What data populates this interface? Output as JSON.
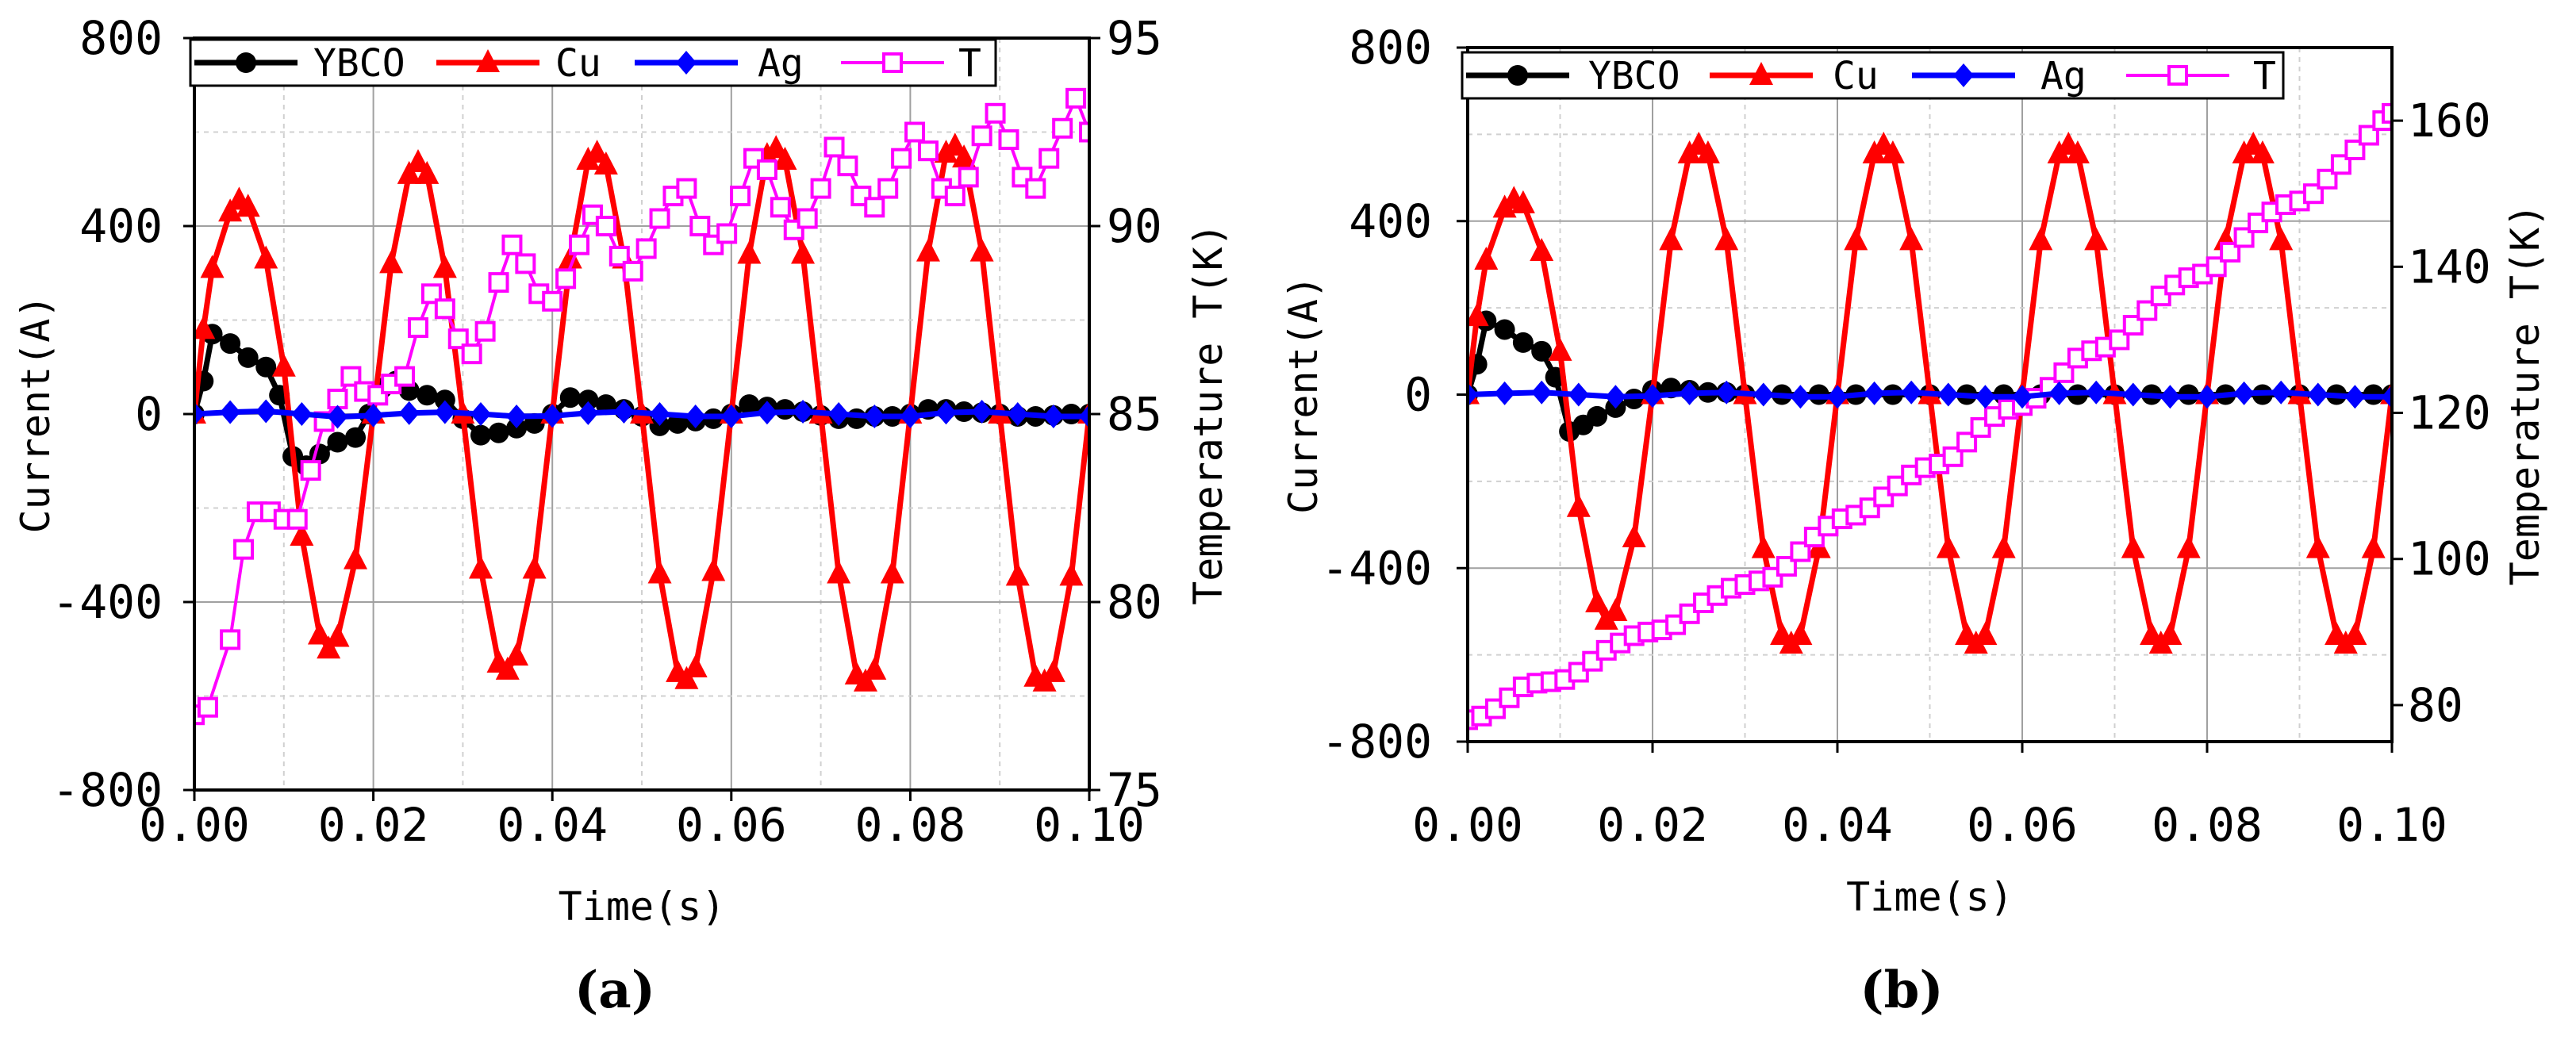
{
  "chart_data": [
    {
      "type": "line",
      "panel_label": "(a)",
      "xlabel": "Time(s)",
      "ylabel": "Current(A)",
      "y2label": "Temperature T(K)",
      "xlim": [
        0,
        0.1
      ],
      "ylim": [
        -800,
        800
      ],
      "y2lim": [
        75,
        95
      ],
      "x_ticks": [
        "0.00",
        "0.02",
        "0.04",
        "0.06",
        "0.08",
        "0.10"
      ],
      "y_ticks": [
        "800",
        "400",
        "0",
        "-400",
        "-800"
      ],
      "y2_ticks": [
        "95",
        "90",
        "85",
        "80",
        "75"
      ],
      "grid": true,
      "legend_position": "top",
      "legend": [
        "YBCO",
        "Cu",
        "Ag",
        "T"
      ],
      "series": [
        {
          "name": "YBCO",
          "color": "#000000",
          "marker": "circle",
          "axis": "left",
          "x": [
            0,
            0.001,
            0.002,
            0.004,
            0.006,
            0.008,
            0.0095,
            0.011,
            0.0125,
            0.014,
            0.016,
            0.018,
            0.0195,
            0.021,
            0.0225,
            0.024,
            0.026,
            0.028,
            0.03,
            0.032,
            0.034,
            0.036,
            0.038,
            0.04,
            0.042,
            0.044,
            0.046,
            0.048,
            0.05,
            0.052,
            0.054,
            0.056,
            0.058,
            0.06,
            0.062,
            0.064,
            0.066,
            0.068,
            0.07,
            0.072,
            0.074,
            0.076,
            0.078,
            0.08,
            0.082,
            0.084,
            0.086,
            0.088,
            0.09,
            0.092,
            0.094,
            0.096,
            0.098,
            0.1
          ],
          "values": [
            0,
            70,
            170,
            150,
            120,
            100,
            40,
            -90,
            -110,
            -85,
            -60,
            -50,
            0,
            55,
            70,
            50,
            40,
            30,
            -10,
            -45,
            -40,
            -30,
            -20,
            0,
            35,
            30,
            20,
            10,
            -5,
            -25,
            -20,
            -15,
            -10,
            0,
            20,
            15,
            10,
            5,
            -3,
            -10,
            -10,
            -5,
            -5,
            0,
            10,
            10,
            5,
            3,
            0,
            -5,
            -5,
            -3,
            0,
            0
          ]
        },
        {
          "name": "Cu",
          "color": "#ff0000",
          "marker": "triangle",
          "axis": "left",
          "x": [
            0,
            0.001,
            0.002,
            0.004,
            0.005,
            0.006,
            0.008,
            0.01,
            0.012,
            0.014,
            0.015,
            0.016,
            0.018,
            0.02,
            0.022,
            0.024,
            0.025,
            0.026,
            0.028,
            0.03,
            0.032,
            0.034,
            0.035,
            0.036,
            0.038,
            0.04,
            0.042,
            0.044,
            0.045,
            0.046,
            0.048,
            0.05,
            0.052,
            0.054,
            0.055,
            0.056,
            0.058,
            0.06,
            0.062,
            0.064,
            0.065,
            0.066,
            0.068,
            0.07,
            0.072,
            0.074,
            0.075,
            0.076,
            0.078,
            0.08,
            0.082,
            0.084,
            0.085,
            0.086,
            0.088,
            0.09,
            0.092,
            0.094,
            0.095,
            0.096,
            0.098,
            0.1
          ],
          "values": [
            0,
            180,
            310,
            430,
            455,
            440,
            330,
            100,
            -260,
            -470,
            -500,
            -475,
            -310,
            0,
            320,
            510,
            535,
            510,
            310,
            0,
            -330,
            -530,
            -545,
            -515,
            -330,
            0,
            330,
            540,
            555,
            530,
            330,
            0,
            -340,
            -550,
            -565,
            -540,
            -335,
            0,
            340,
            550,
            565,
            540,
            340,
            0,
            -340,
            -555,
            -570,
            -545,
            -340,
            0,
            345,
            555,
            570,
            545,
            345,
            0,
            -345,
            -560,
            -570,
            -550,
            -345,
            0
          ]
        },
        {
          "name": "Ag",
          "color": "#0000ff",
          "marker": "diamond",
          "axis": "left",
          "x": [
            0,
            0.004,
            0.008,
            0.012,
            0.016,
            0.02,
            0.024,
            0.028,
            0.032,
            0.036,
            0.04,
            0.044,
            0.048,
            0.052,
            0.056,
            0.06,
            0.064,
            0.068,
            0.072,
            0.076,
            0.08,
            0.084,
            0.088,
            0.092,
            0.096,
            0.1
          ],
          "values": [
            0,
            4,
            6,
            0,
            -6,
            -3,
            2,
            4,
            0,
            -5,
            -4,
            2,
            5,
            0,
            -5,
            -5,
            3,
            5,
            0,
            -5,
            -5,
            3,
            5,
            0,
            -5,
            -5
          ]
        },
        {
          "name": "T",
          "color": "#ff00ff",
          "marker": "square-open",
          "axis": "right",
          "x": [
            0,
            0.0015,
            0.004,
            0.0055,
            0.007,
            0.0085,
            0.01,
            0.0115,
            0.013,
            0.0145,
            0.016,
            0.0175,
            0.019,
            0.0205,
            0.022,
            0.0235,
            0.025,
            0.0265,
            0.028,
            0.0295,
            0.031,
            0.0325,
            0.034,
            0.0355,
            0.037,
            0.0385,
            0.04,
            0.0415,
            0.043,
            0.0445,
            0.046,
            0.0475,
            0.049,
            0.0505,
            0.052,
            0.0535,
            0.055,
            0.0565,
            0.058,
            0.0595,
            0.061,
            0.0625,
            0.064,
            0.0655,
            0.067,
            0.0685,
            0.07,
            0.0715,
            0.073,
            0.0745,
            0.076,
            0.0775,
            0.079,
            0.0805,
            0.082,
            0.0835,
            0.085,
            0.0865,
            0.088,
            0.0895,
            0.091,
            0.0925,
            0.094,
            0.0955,
            0.097,
            0.0985,
            0.1
          ],
          "values": [
            77.0,
            77.2,
            79.0,
            81.4,
            82.4,
            82.4,
            82.2,
            82.2,
            83.5,
            84.8,
            85.4,
            86.0,
            85.6,
            85.5,
            85.8,
            86.0,
            87.3,
            88.2,
            87.8,
            87.0,
            86.6,
            87.2,
            88.5,
            89.5,
            89.0,
            88.2,
            88.0,
            88.6,
            89.5,
            90.3,
            90.0,
            89.2,
            88.8,
            89.4,
            90.2,
            90.8,
            91.0,
            90.0,
            89.5,
            89.8,
            90.8,
            91.8,
            91.5,
            90.5,
            89.9,
            90.2,
            91.0,
            92.1,
            91.6,
            90.8,
            90.5,
            91.0,
            91.8,
            92.5,
            92.0,
            91.0,
            90.8,
            91.3,
            92.4,
            93.0,
            92.3,
            91.3,
            91.0,
            91.8,
            92.6,
            93.4,
            92.5
          ]
        }
      ]
    },
    {
      "type": "line",
      "panel_label": "(b)",
      "xlabel": "Time(s)",
      "ylabel": "Current(A)",
      "y2label": "Temperature T(K)",
      "xlim": [
        0,
        0.1
      ],
      "ylim": [
        -800,
        800
      ],
      "y2lim": [
        75,
        170
      ],
      "x_ticks": [
        "0.00",
        "0.02",
        "0.04",
        "0.06",
        "0.08",
        "0.10"
      ],
      "y_ticks": [
        "800",
        "400",
        "0",
        "-400",
        "-800"
      ],
      "y2_ticks": [
        "160",
        "140",
        "120",
        "100",
        "80"
      ],
      "grid": true,
      "legend_position": "top",
      "legend": [
        "YBCO",
        "Cu",
        "Ag",
        "T"
      ],
      "series": [
        {
          "name": "YBCO",
          "color": "#000000",
          "marker": "circle",
          "axis": "left",
          "x": [
            0,
            0.001,
            0.002,
            0.004,
            0.006,
            0.008,
            0.0095,
            0.011,
            0.0125,
            0.014,
            0.016,
            0.018,
            0.02,
            0.022,
            0.024,
            0.026,
            0.028,
            0.03,
            0.034,
            0.038,
            0.042,
            0.046,
            0.05,
            0.054,
            0.058,
            0.062,
            0.066,
            0.07,
            0.074,
            0.078,
            0.082,
            0.086,
            0.09,
            0.094,
            0.098,
            0.1
          ],
          "values": [
            0,
            70,
            170,
            150,
            120,
            100,
            40,
            -85,
            -70,
            -50,
            -30,
            -10,
            10,
            15,
            10,
            5,
            5,
            0,
            0,
            0,
            0,
            0,
            0,
            0,
            0,
            0,
            0,
            0,
            0,
            0,
            0,
            0,
            0,
            0,
            0,
            0
          ]
        },
        {
          "name": "Cu",
          "color": "#ff0000",
          "marker": "triangle",
          "axis": "left",
          "x": [
            0,
            0.001,
            0.002,
            0.004,
            0.005,
            0.006,
            0.008,
            0.01,
            0.012,
            0.014,
            0.015,
            0.016,
            0.018,
            0.02,
            0.022,
            0.024,
            0.025,
            0.026,
            0.028,
            0.03,
            0.032,
            0.034,
            0.035,
            0.036,
            0.038,
            0.04,
            0.042,
            0.044,
            0.045,
            0.046,
            0.048,
            0.05,
            0.052,
            0.054,
            0.055,
            0.056,
            0.058,
            0.06,
            0.062,
            0.064,
            0.065,
            0.066,
            0.068,
            0.07,
            0.072,
            0.074,
            0.075,
            0.076,
            0.078,
            0.08,
            0.082,
            0.084,
            0.085,
            0.086,
            0.088,
            0.09,
            0.092,
            0.094,
            0.095,
            0.096,
            0.098,
            0.1
          ],
          "values": [
            0,
            180,
            310,
            430,
            450,
            440,
            330,
            100,
            -260,
            -480,
            -520,
            -500,
            -330,
            0,
            355,
            555,
            575,
            555,
            355,
            0,
            -355,
            -555,
            -575,
            -555,
            -355,
            0,
            355,
            555,
            575,
            555,
            355,
            0,
            -355,
            -555,
            -575,
            -555,
            -355,
            0,
            355,
            555,
            575,
            555,
            355,
            0,
            -355,
            -555,
            -575,
            -555,
            -355,
            0,
            355,
            555,
            575,
            555,
            355,
            0,
            -355,
            -555,
            -575,
            -555,
            -355,
            0
          ]
        },
        {
          "name": "Ag",
          "color": "#0000ff",
          "marker": "diamond",
          "axis": "left",
          "x": [
            0,
            0.004,
            0.008,
            0.012,
            0.016,
            0.02,
            0.024,
            0.028,
            0.032,
            0.036,
            0.04,
            0.044,
            0.048,
            0.052,
            0.056,
            0.06,
            0.064,
            0.068,
            0.072,
            0.076,
            0.08,
            0.084,
            0.088,
            0.092,
            0.096,
            0.1
          ],
          "values": [
            0,
            3,
            5,
            0,
            -5,
            -3,
            3,
            5,
            0,
            -5,
            -5,
            3,
            5,
            0,
            -5,
            -5,
            3,
            5,
            0,
            -5,
            -5,
            3,
            5,
            0,
            -5,
            -5
          ]
        },
        {
          "name": "T",
          "color": "#ff00ff",
          "marker": "square-open",
          "axis": "right",
          "x": [
            0,
            0.0015,
            0.003,
            0.0045,
            0.006,
            0.0075,
            0.009,
            0.0105,
            0.012,
            0.0135,
            0.015,
            0.0165,
            0.018,
            0.0195,
            0.021,
            0.0225,
            0.024,
            0.0255,
            0.027,
            0.0285,
            0.03,
            0.0315,
            0.033,
            0.0345,
            0.036,
            0.0375,
            0.039,
            0.0405,
            0.042,
            0.0435,
            0.045,
            0.0465,
            0.048,
            0.0495,
            0.051,
            0.0525,
            0.054,
            0.0555,
            0.057,
            0.0585,
            0.06,
            0.0615,
            0.063,
            0.0645,
            0.066,
            0.0675,
            0.069,
            0.0705,
            0.072,
            0.0735,
            0.075,
            0.0765,
            0.078,
            0.0795,
            0.081,
            0.0825,
            0.084,
            0.0855,
            0.087,
            0.0885,
            0.09,
            0.0915,
            0.093,
            0.0945,
            0.096,
            0.0975,
            0.099,
            0.1
          ],
          "values": [
            78.0,
            78.5,
            79.5,
            81.0,
            82.5,
            83.0,
            83.2,
            83.5,
            84.5,
            86.0,
            87.5,
            88.5,
            89.5,
            90.0,
            90.3,
            91.0,
            92.5,
            94.0,
            95.0,
            96.0,
            96.5,
            97.0,
            97.5,
            99.0,
            101.0,
            103.0,
            104.5,
            105.5,
            106.0,
            107.0,
            108.5,
            110.0,
            111.5,
            112.5,
            113.0,
            114.0,
            116.0,
            118.0,
            119.5,
            120.5,
            121.0,
            122.0,
            123.5,
            125.5,
            127.5,
            128.5,
            129.0,
            130.0,
            132.0,
            134.0,
            136.0,
            137.5,
            138.5,
            139.0,
            140.0,
            142.0,
            144.0,
            146.0,
            147.5,
            148.5,
            149.0,
            150.0,
            152.0,
            154.0,
            156.0,
            158.0,
            160.0,
            161.0
          ]
        }
      ]
    }
  ]
}
